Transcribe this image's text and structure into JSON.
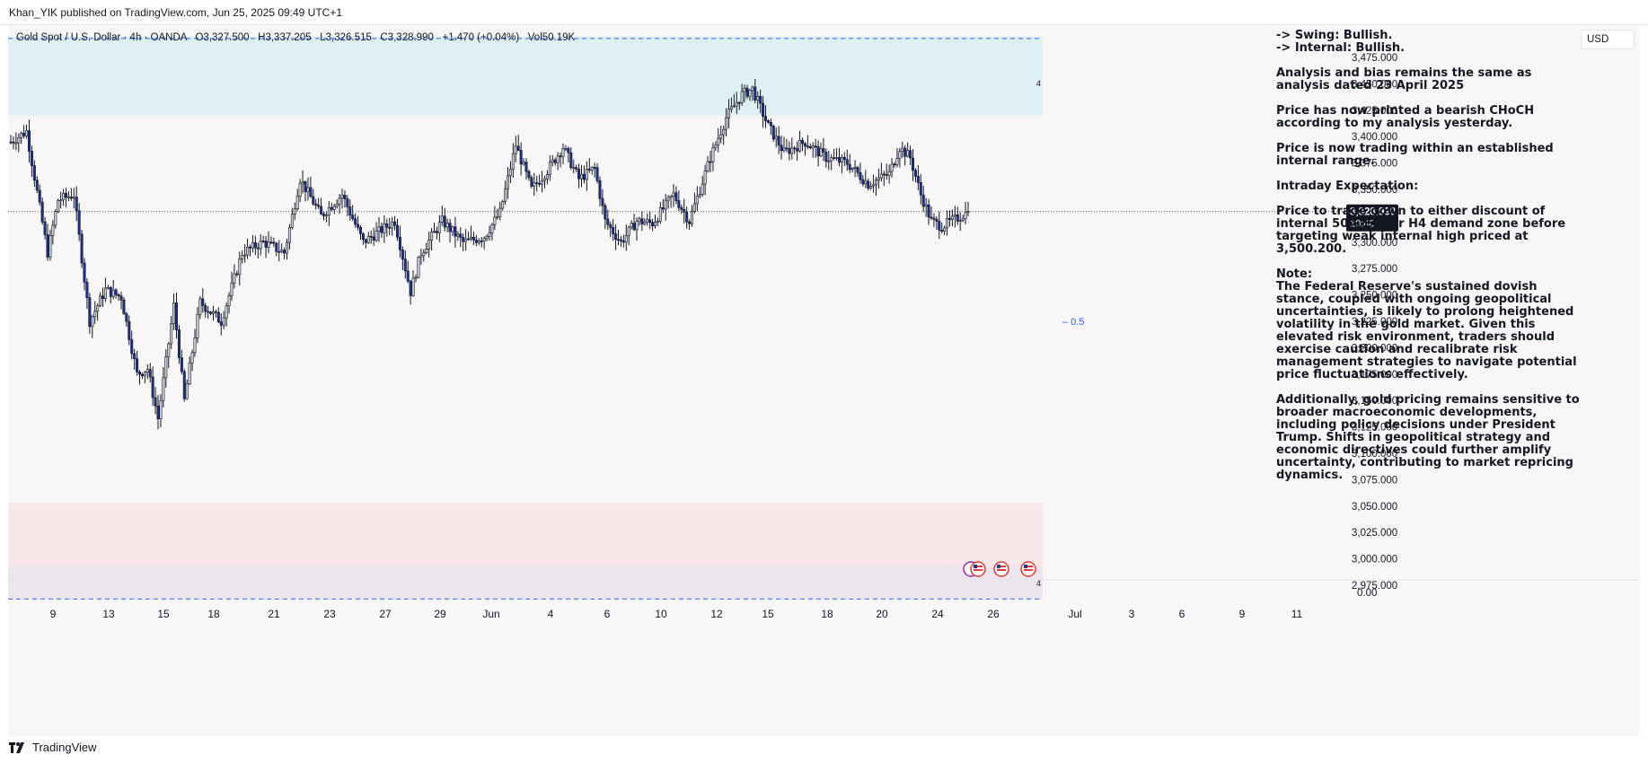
{
  "header": {
    "published": "Khan_YIK published on TradingView.com, Jun 25, 2025 09:49 UTC+1"
  },
  "legend": {
    "symbol": "Gold Spot / U.S. Dollar · 4h · OANDA",
    "open": "O3,327.500",
    "high": "H3,337.205",
    "low": "L3,326.515",
    "close": "C3,328.990",
    "change": "+1.470 (+0.04%)",
    "volume": "Vol50.19K"
  },
  "currency_button": "USD",
  "last_price": {
    "value": "3,328.990",
    "countdown": "10:40"
  },
  "zone_labels": {
    "top_zone": "4",
    "demand_zone_d": "D",
    "bottom_zone": "4",
    "mid_level": "0.5"
  },
  "colors": {
    "bull": "#d1d4dc",
    "bear": "#1e2f9a",
    "premium_zone": "#dff0f3",
    "demand_zone": "#f9e6e8",
    "deep_zone": "#ece6ec",
    "dash_line": "#2962ff",
    "mid_label": "#2962ff"
  },
  "chart_data": {
    "type": "candlestick",
    "symbol": "Gold Spot / U.S. Dollar",
    "timeframe": "4h",
    "y_axis": {
      "ticks": [
        "3,475.000",
        "3,450.000",
        "3,425.000",
        "3,400.000",
        "3,375.000",
        "3,350.000",
        "3,300.000",
        "3,275.000",
        "3,250.000",
        "3,225.000",
        "3,200.000",
        "3,175.000",
        "3,150.000",
        "3,125.000",
        "3,100.000",
        "3,075.000",
        "3,050.000",
        "3,025.000",
        "3,000.000",
        "2,975.000"
      ],
      "tick_values": [
        3475,
        3450,
        3425,
        3400,
        3375,
        3350,
        3300,
        3275,
        3250,
        3225,
        3200,
        3175,
        3150,
        3125,
        3100,
        3075,
        3050,
        3025,
        3000,
        2975
      ],
      "range": [
        2960,
        3495
      ],
      "volume_pane_tick": "0.00"
    },
    "x_axis": {
      "ticks": [
        "9",
        "13",
        "15",
        "18",
        "21",
        "23",
        "27",
        "29",
        "Jun",
        "4",
        "6",
        "10",
        "12",
        "15",
        "18",
        "20",
        "24",
        "26",
        "Jul",
        "3",
        "6",
        "9",
        "11"
      ]
    },
    "zones": [
      {
        "name": "premium-zone",
        "from": 3420,
        "to": 3495
      },
      {
        "name": "demand-zone",
        "from": 2993,
        "to": 3053
      },
      {
        "name": "deep-demand-zone",
        "from": 2962,
        "to": 2993
      }
    ],
    "levels": [
      {
        "name": "top-dashed",
        "value": 3493
      },
      {
        "name": "bottom-dashed",
        "value": 2962
      },
      {
        "name": "last-price",
        "value": 3328.99
      }
    ],
    "anchors": [
      [
        0,
        3395
      ],
      [
        6,
        3405
      ],
      [
        14,
        3290
      ],
      [
        18,
        3340
      ],
      [
        24,
        3345
      ],
      [
        30,
        3225
      ],
      [
        36,
        3255
      ],
      [
        42,
        3248
      ],
      [
        48,
        3175
      ],
      [
        52,
        3180
      ],
      [
        56,
        3133
      ],
      [
        62,
        3240
      ],
      [
        66,
        3150
      ],
      [
        72,
        3243
      ],
      [
        80,
        3225
      ],
      [
        88,
        3290
      ],
      [
        96,
        3300
      ],
      [
        104,
        3290
      ],
      [
        110,
        3360
      ],
      [
        118,
        3325
      ],
      [
        126,
        3345
      ],
      [
        134,
        3300
      ],
      [
        140,
        3310
      ],
      [
        146,
        3320
      ],
      [
        152,
        3253
      ],
      [
        156,
        3290
      ],
      [
        164,
        3320
      ],
      [
        172,
        3300
      ],
      [
        180,
        3305
      ],
      [
        186,
        3328
      ],
      [
        192,
        3392
      ],
      [
        198,
        3350
      ],
      [
        204,
        3368
      ],
      [
        210,
        3390
      ],
      [
        216,
        3360
      ],
      [
        222,
        3370
      ],
      [
        226,
        3320
      ],
      [
        232,
        3300
      ],
      [
        238,
        3320
      ],
      [
        244,
        3318
      ],
      [
        252,
        3345
      ],
      [
        258,
        3320
      ],
      [
        266,
        3380
      ],
      [
        272,
        3418
      ],
      [
        278,
        3440
      ],
      [
        282,
        3445
      ],
      [
        288,
        3410
      ],
      [
        294,
        3385
      ],
      [
        302,
        3395
      ],
      [
        310,
        3380
      ],
      [
        318,
        3375
      ],
      [
        326,
        3355
      ],
      [
        334,
        3365
      ],
      [
        338,
        3390
      ],
      [
        342,
        3380
      ],
      [
        346,
        3345
      ],
      [
        350,
        3320
      ],
      [
        354,
        3315
      ],
      [
        360,
        3323
      ],
      [
        364,
        3328.99
      ]
    ]
  },
  "notes": [
    "-> Swing:  Bullish.\n-> Internal:  Bullish.",
    "Analysis and bias remains the same as analysis dated 23 April 2025",
    "Price has now printed a bearish CHoCH according to my analysis yesterday.",
    "Price is now trading within an established internal range.",
    "Intraday Expectation:",
    "Price to trade down to either discount of internal 50% EQ, or H4 demand zone before targeting weak internal high priced at 3,500.200.",
    "Note:\nThe Federal Reserve's sustained dovish stance, coupled with ongoing geopolitical uncertainties, is likely to prolong heightened volatility in the gold market. Given this elevated risk environment, traders should exercise caution and recalibrate risk management strategies to navigate potential price fluctuations effectively.",
    "Additionally, gold pricing remains sensitive to broader macroeconomic developments, including policy decisions under President Trump. Shifts in geopolitical strategy and economic directives could further amplify uncertainty, contributing to market repricing dynamics."
  ],
  "footer": {
    "brand": "TradingView"
  },
  "icons": {
    "logo": "tradingview-logo-icon",
    "events": "us-flag-event-icon"
  }
}
